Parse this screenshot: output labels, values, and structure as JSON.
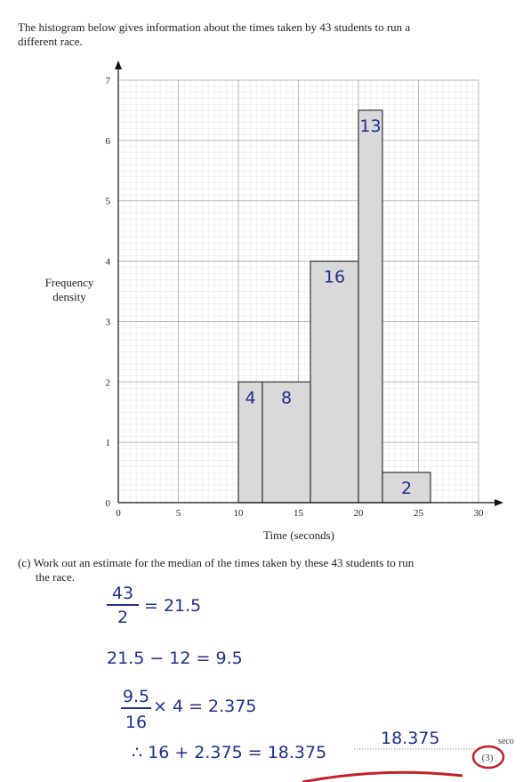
{
  "question": {
    "intro_line1": "The histogram below gives information about the times taken by 43 students to run a",
    "intro_line2": "different race.",
    "part_c_line1": "(c) Work out an estimate for the median of the times taken by these 43 students to run",
    "part_c_line2": "the race."
  },
  "chart_data": {
    "type": "histogram",
    "x_label": "Time (seconds)",
    "y_label_line1": "Frequency",
    "y_label_line2": "density",
    "bins": [
      10,
      12,
      16,
      20,
      22,
      26
    ],
    "values": [
      2,
      2,
      4,
      6.5,
      0.5
    ],
    "annotations": [
      "4",
      "8",
      "16",
      "13",
      "2"
    ],
    "color": "#d9d9d9",
    "xlim": [
      0,
      30
    ],
    "ylim": [
      0,
      7
    ],
    "xticks": [
      0,
      5,
      10,
      15,
      20,
      25,
      30
    ],
    "yticks": [
      0,
      1,
      2,
      3,
      4,
      5,
      6,
      7
    ],
    "grid": true
  },
  "working": {
    "line1": {
      "numerator": "43",
      "denominator": "2",
      "result": "= 21.5"
    },
    "line2": "21.5 − 12 = 9.5",
    "line3": {
      "numerator": "9.5",
      "denominator": "16",
      "result": "× 4 = 2.375"
    },
    "line4": "∴ 16 + 2.375 = 18.375"
  },
  "answer": {
    "value": "18.375",
    "unit": "seco",
    "marks": "(3)"
  }
}
